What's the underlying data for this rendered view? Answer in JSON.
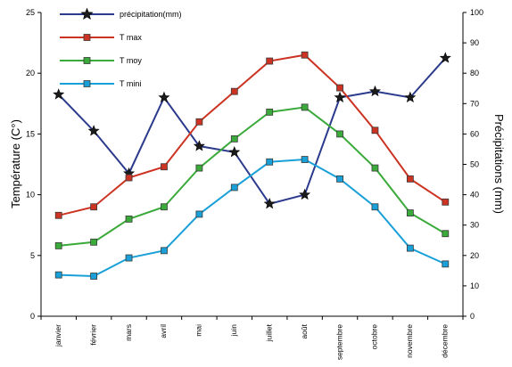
{
  "chart_data": {
    "type": "line",
    "categories": [
      "janvier",
      "février",
      "mars",
      "avril",
      "mai",
      "juin",
      "juillet",
      "août",
      "septembre",
      "octobre",
      "novembre",
      "décembre"
    ],
    "ylabel_left": "Température (C°)",
    "ylabel_right": "Précipitations (mm)",
    "ylim_left": [
      0,
      25
    ],
    "ylim_right": [
      0,
      100
    ],
    "yticks_left": [
      0,
      5,
      10,
      15,
      20,
      25
    ],
    "yticks_right": [
      0,
      10,
      20,
      30,
      40,
      50,
      60,
      70,
      80,
      90,
      100
    ],
    "legend_position": "top-left",
    "grid": false,
    "series": [
      {
        "name": "précipitation(mm)",
        "axis": "right",
        "color": "#2b3a8c",
        "marker": "star",
        "values": [
          73,
          61,
          47,
          72,
          56,
          54,
          37,
          40,
          72,
          74,
          72,
          85
        ]
      },
      {
        "name": "T max",
        "axis": "left",
        "color": "#cc3322",
        "marker": "square",
        "values": [
          8.3,
          9.0,
          11.4,
          12.3,
          16.0,
          18.5,
          21.0,
          21.5,
          18.8,
          15.3,
          11.3,
          9.4
        ]
      },
      {
        "name": "T moy",
        "axis": "left",
        "color": "#3aaa3a",
        "marker": "square",
        "values": [
          5.8,
          6.1,
          8.0,
          9.0,
          12.2,
          14.6,
          16.8,
          17.2,
          15.0,
          12.2,
          8.5,
          6.8
        ]
      },
      {
        "name": "T mini",
        "axis": "left",
        "color": "#1aa0d8",
        "marker": "square",
        "values": [
          3.4,
          3.3,
          4.8,
          5.4,
          8.4,
          10.6,
          12.7,
          12.9,
          11.3,
          9.0,
          5.6,
          4.3
        ]
      }
    ]
  }
}
